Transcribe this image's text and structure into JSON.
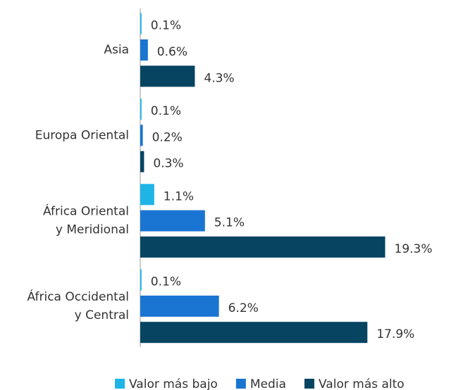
{
  "chart_data": {
    "type": "hbar",
    "categories": [
      [
        "Asia"
      ],
      [
        "Europa Oriental"
      ],
      [
        "África Oriental",
        "y Meridional"
      ],
      [
        "África Occidental",
        "y Central"
      ]
    ],
    "series": [
      {
        "name": "Valor más bajo",
        "color": "#1eb4e6",
        "values": [
          0.1,
          0.1,
          1.1,
          0.1
        ],
        "value_labels": [
          "0.1%",
          "0.1%",
          "1.1%",
          "0.1%"
        ]
      },
      {
        "name": "Media",
        "color": "#1a74d2",
        "values": [
          0.6,
          0.2,
          5.1,
          6.2
        ],
        "value_labels": [
          "0.6%",
          "0.2%",
          "5.1%",
          "6.2%"
        ]
      },
      {
        "name": "Valor más alto",
        "color": "#064462",
        "values": [
          4.3,
          0.3,
          19.3,
          17.9
        ],
        "value_labels": [
          "4.3%",
          "0.3%",
          "19.3%",
          "17.9%"
        ]
      }
    ],
    "xlim": [
      0,
      20
    ]
  }
}
